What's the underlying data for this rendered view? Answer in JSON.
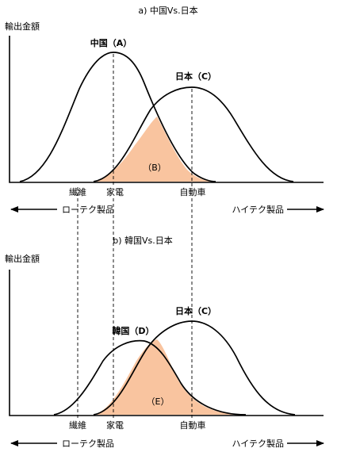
{
  "panel_a": {
    "title": "a) 中国Vs.日本",
    "y_label": "輸出金額",
    "curve_left_label": "中国（A）",
    "curve_right_label": "日本（C）",
    "overlap_label": "（B）",
    "tick_labels": [
      "繊維",
      "家電",
      "自動車"
    ],
    "axis_left_label": "ローテク製品",
    "axis_right_label": "ハイテク製品"
  },
  "panel_b": {
    "title": "b) 韓国Vs.日本",
    "y_label": "輸出金額",
    "curve_left_label": "韓国（D）",
    "curve_right_label": "日本（C）",
    "overlap_label": "（E）",
    "tick_labels": [
      "繊維",
      "家電",
      "自動車"
    ],
    "axis_left_label": "ローテク製品",
    "axis_right_label": "ハイテク製品"
  },
  "colors": {
    "overlap_fill": "#f9c49f",
    "line": "#000000"
  }
}
